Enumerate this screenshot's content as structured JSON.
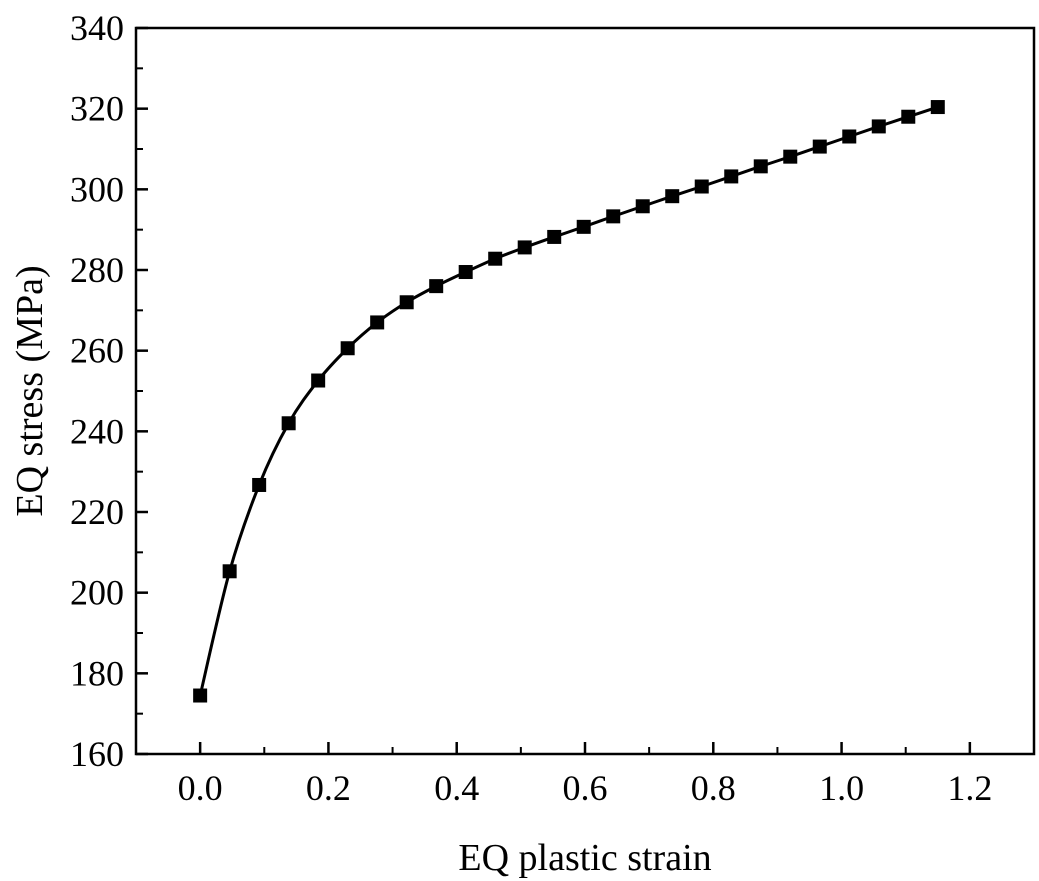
{
  "chart_data": {
    "type": "line",
    "title": "",
    "xlabel": "EQ plastic strain",
    "ylabel": "EQ stress (MPa)",
    "xlim": [
      -0.1,
      1.3
    ],
    "ylim": [
      160,
      340
    ],
    "xticks": [
      0.0,
      0.2,
      0.4,
      0.6,
      0.8,
      1.0,
      1.2
    ],
    "xtick_labels": [
      "0.0",
      "0.2",
      "0.4",
      "0.6",
      "0.8",
      "1.0",
      "1.2"
    ],
    "yticks": [
      160,
      180,
      200,
      220,
      240,
      260,
      280,
      300,
      320,
      340
    ],
    "ytick_labels": [
      "160",
      "180",
      "200",
      "220",
      "240",
      "260",
      "280",
      "300",
      "320",
      "340"
    ],
    "grid": false,
    "legend": "none",
    "marker": "square",
    "color": "#000000",
    "series": [
      {
        "x": [
          0.0,
          0.046,
          0.092,
          0.138,
          0.184,
          0.23,
          0.276,
          0.322,
          0.368,
          0.414,
          0.46,
          0.506,
          0.552,
          0.598,
          0.644,
          0.69,
          0.736,
          0.782,
          0.828,
          0.874,
          0.92,
          0.966,
          1.012,
          1.058,
          1.104,
          1.15
        ],
        "y": [
          174.5,
          205.3,
          226.7,
          242.0,
          252.6,
          260.6,
          267.0,
          272.0,
          276.0,
          279.5,
          282.8,
          285.6,
          288.2,
          290.7,
          293.3,
          295.8,
          298.3,
          300.7,
          303.2,
          305.7,
          308.1,
          310.6,
          313.1,
          315.6,
          318.0,
          320.4
        ]
      }
    ]
  }
}
